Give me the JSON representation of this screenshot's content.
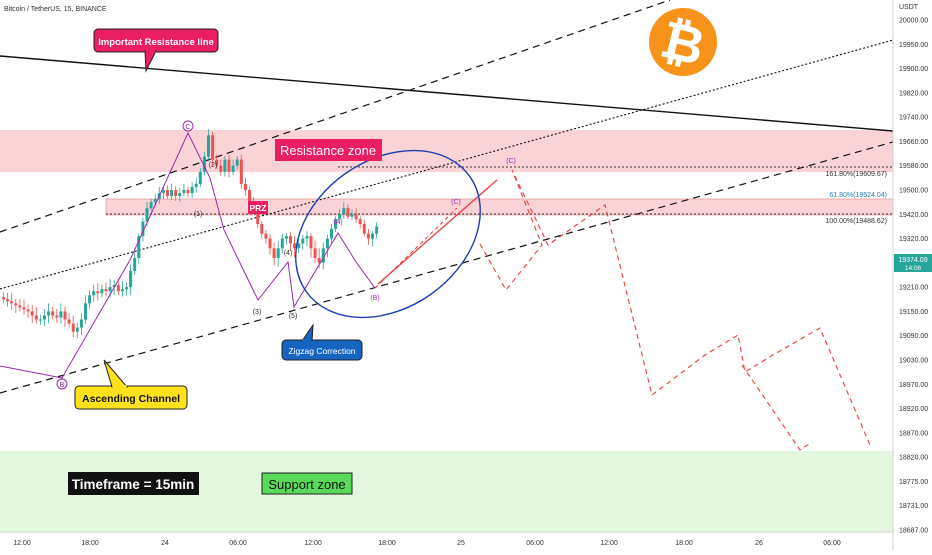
{
  "header": {
    "symbol": "Bitcoin / TetherUS, 15, BINANCE",
    "currency": "USDT"
  },
  "y_axis_ticks": [
    "20000.00",
    "19950.00",
    "19900.00",
    "19820.00",
    "19740.00",
    "19660.00",
    "19580.00",
    "19500.00",
    "19420.00",
    "19320.00",
    "19270.00",
    "19210.00",
    "19150.00",
    "19090.00",
    "19030.00",
    "18970.00",
    "18920.00",
    "18870.00",
    "18820.00",
    "18775.00",
    "18731.00",
    "18687.00"
  ],
  "x_axis_ticks": [
    "12:00",
    "18:00",
    "24",
    "06:00",
    "12:00",
    "18:00",
    "25",
    "06:00",
    "12:00",
    "18:00",
    "26",
    "06:00"
  ],
  "price_label": {
    "price": "19374.09",
    "countdown": "14:06"
  },
  "annotations": {
    "important_resistance": "Important Resistance line",
    "resistance_zone": "Resistance zone",
    "prz": "PRZ",
    "ascending_channel": "Ascending Channel",
    "zigzag": "Zigzag Correction",
    "timeframe": "Timeframe = 15min",
    "support_zone": "Support zone"
  },
  "fib_levels": [
    {
      "label": "161.80%(19609.67)",
      "color": "#333333"
    },
    {
      "label": "61.80%(19524.04)",
      "color": "#2a7ab0"
    },
    {
      "label": "100.00%(19488.62)",
      "color": "#333333"
    }
  ],
  "wave_labels": {
    "c_top": "C",
    "b_bottom": "B",
    "w1": "(1)",
    "w2": "(2)",
    "w3": "(3)",
    "w4": "(4)",
    "w5": "(5)",
    "wa": "(A)",
    "wb": "(B)",
    "wc_small": "(C)",
    "wc_big": "(C)"
  },
  "colors": {
    "bull": "#26a69a",
    "bear": "#ef5350",
    "resistance_fill": "#f9d3d6",
    "support_fill": "#e3f7df",
    "wave_purple": "#9c27b0",
    "projection_red": "#ef3b3b",
    "bitcoin_orange": "#f7931a",
    "important_label": "#e91e63",
    "zigzag_label": "#1565c0",
    "channel_label": "#ffe21a",
    "support_label": "#5bd95b"
  },
  "chart_data": {
    "type": "candlestick",
    "timeframe": "15",
    "y_range": [
      18687,
      20000
    ],
    "current_price": 19374.09,
    "resistance_zone": [
      19570,
      19720
    ],
    "support_zone": [
      18687,
      18870
    ],
    "prz_zone": [
      19488,
      19524
    ],
    "closes": [
      19180,
      19175,
      19170,
      19165,
      19160,
      19155,
      19150,
      19140,
      19130,
      19130,
      19140,
      19150,
      19140,
      19135,
      19150,
      19130,
      19120,
      19100,
      19110,
      19130,
      19170,
      19190,
      19200,
      19195,
      19205,
      19200,
      19210,
      19215,
      19200,
      19205,
      19210,
      19250,
      19280,
      19330,
      19390,
      19440,
      19460,
      19470,
      19490,
      19500,
      19480,
      19500,
      19480,
      19490,
      19500,
      19490,
      19510,
      19520,
      19560,
      19610,
      19680,
      19600,
      19580,
      19560,
      19600,
      19560,
      19580,
      19600,
      19520,
      19500,
      19460,
      19440,
      19380,
      19340,
      19320,
      19300,
      19280,
      19300,
      19320,
      19330,
      19310,
      19300,
      19310,
      19320,
      19330,
      19300,
      19280,
      19270,
      19300,
      19320,
      19360,
      19400,
      19420,
      19440,
      19410,
      19420,
      19400,
      19380,
      19340,
      19320,
      19340,
      19370
    ]
  }
}
